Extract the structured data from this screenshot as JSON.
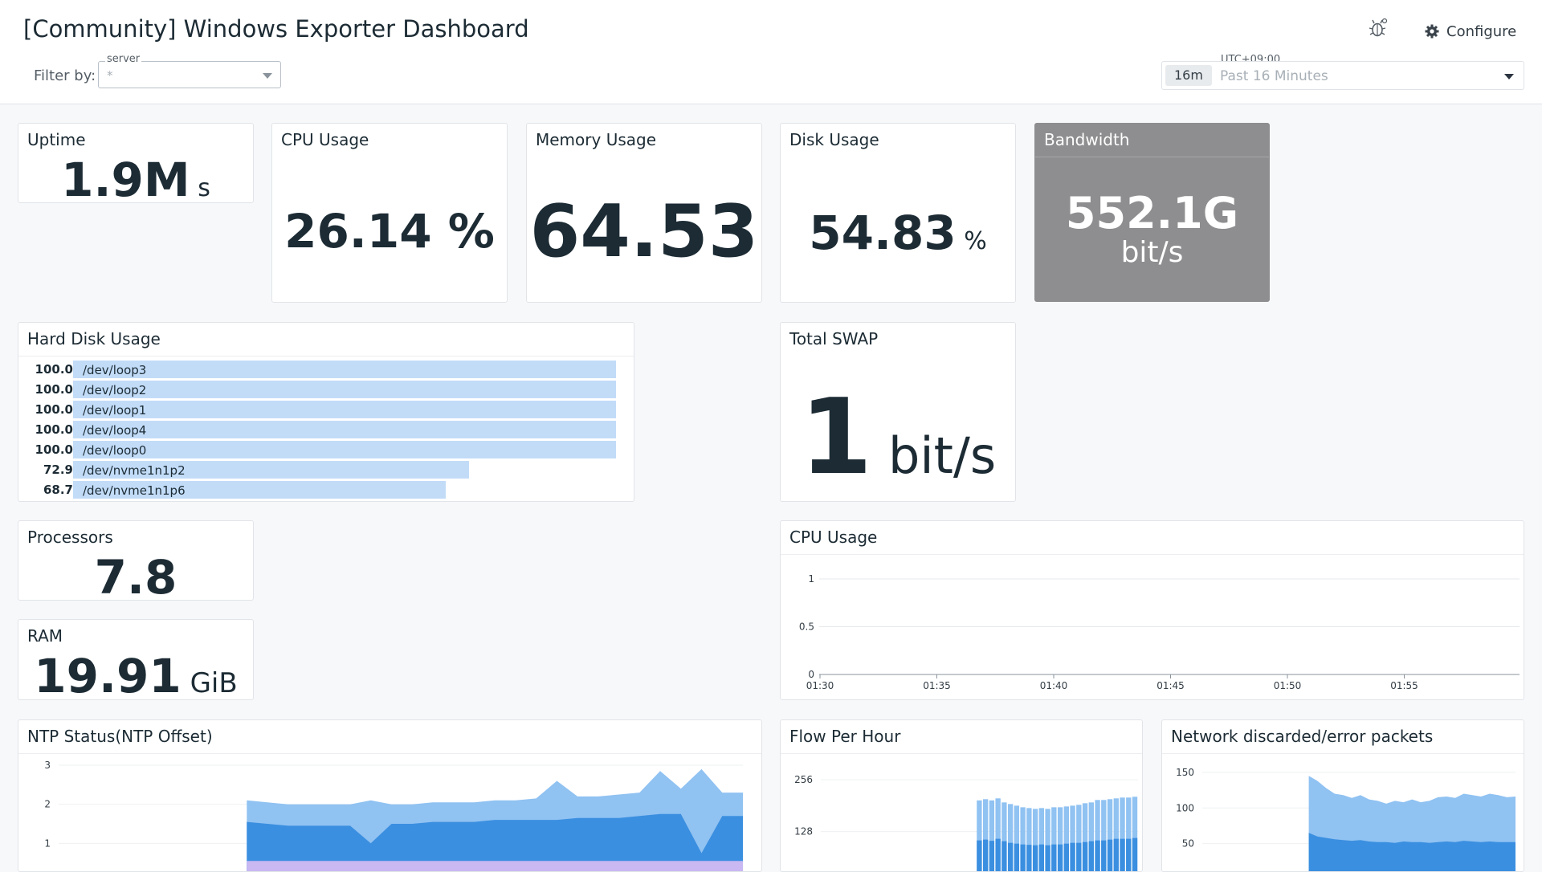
{
  "header": {
    "title": "[Community] Windows Exporter Dashboard",
    "filter_label": "Filter by:",
    "filter": {
      "legend": "server",
      "value": "*"
    },
    "configure_label": "Configure",
    "timezone": "UTC+09:00",
    "time_chip": "16m",
    "time_range": "Past 16 Minutes"
  },
  "widgets": {
    "uptime": {
      "title": "Uptime",
      "value": "1.9M",
      "unit": "s"
    },
    "cpu_usage": {
      "title": "CPU Usage",
      "value": "26.14",
      "unit": "%"
    },
    "memory_usage": {
      "title": "Memory Usage",
      "value": "64.53"
    },
    "disk_usage": {
      "title": "Disk Usage",
      "value": "54.83",
      "unit": "%"
    },
    "bandwidth": {
      "title": "Bandwidth",
      "value": "552.1G",
      "unit": "bit/s"
    },
    "hard_disk": {
      "title": "Hard Disk Usage",
      "rows": [
        {
          "value": "100.0",
          "name": "/dev/loop3",
          "pct": 100.0
        },
        {
          "value": "100.0",
          "name": "/dev/loop2",
          "pct": 100.0
        },
        {
          "value": "100.0",
          "name": "/dev/loop1",
          "pct": 100.0
        },
        {
          "value": "100.0",
          "name": "/dev/loop4",
          "pct": 100.0
        },
        {
          "value": "100.0",
          "name": "/dev/loop0",
          "pct": 100.0
        },
        {
          "value": "72.9",
          "name": "/dev/nvme1n1p2",
          "pct": 72.9
        },
        {
          "value": "68.7",
          "name": "/dev/nvme1n1p6",
          "pct": 68.7
        }
      ]
    },
    "total_swap": {
      "title": "Total SWAP",
      "value": "1",
      "unit": "bit/s"
    },
    "processors": {
      "title": "Processors",
      "value": "7.8"
    },
    "ram": {
      "title": "RAM",
      "value": "19.91",
      "unit": "GiB"
    },
    "cpu_chart": {
      "title": "CPU Usage",
      "y_ticks": [
        "1",
        "0.5",
        "0"
      ],
      "x_ticks": [
        "01:30",
        "01:35",
        "01:40",
        "01:45",
        "01:50",
        "01:55"
      ]
    },
    "ntp": {
      "title": "NTP Status(NTP Offset)",
      "y_ticks": [
        "3",
        "2",
        "1"
      ]
    },
    "flow": {
      "title": "Flow Per Hour",
      "y_ticks": [
        "256",
        "128"
      ]
    },
    "network": {
      "title": "Network discarded/error packets",
      "y_ticks": [
        "150",
        "100",
        "50"
      ]
    }
  },
  "colors": {
    "series_light": "#90c2f2",
    "series_dark": "#3b8fe0",
    "series_purple": "#c9b8f2",
    "disk_bar": "#c2dcf8",
    "bandwidth_bg": "#8e8e90"
  },
  "chart_data": [
    {
      "type": "line",
      "title": "CPU Usage",
      "x": [
        "01:30",
        "01:35",
        "01:40",
        "01:45",
        "01:50",
        "01:55"
      ],
      "ylim": [
        0,
        1
      ],
      "y_ticks": [
        0,
        0.5,
        1
      ],
      "series": [],
      "grid": true
    },
    {
      "type": "area",
      "title": "NTP Status(NTP Offset)",
      "y_ticks": [
        1,
        2,
        3
      ],
      "ylim": [
        0,
        3
      ],
      "series": [
        {
          "values": [
            2.1,
            2.05,
            2.0,
            2.0,
            2.0,
            2.0,
            2.1,
            2.0,
            2.0,
            2.05,
            2.05,
            2.05,
            2.1,
            2.1,
            2.15,
            2.6,
            2.2,
            2.2,
            2.25,
            2.3,
            2.85,
            2.4,
            2.9,
            2.3,
            2.3
          ]
        },
        {
          "values": [
            1.55,
            1.5,
            1.45,
            1.45,
            1.45,
            1.45,
            1.0,
            1.5,
            1.5,
            1.55,
            1.55,
            1.55,
            1.6,
            1.6,
            1.6,
            1.6,
            1.65,
            1.65,
            1.65,
            1.7,
            1.75,
            1.75,
            0.75,
            1.7,
            1.7
          ]
        },
        {
          "values": [
            0.55,
            0.55,
            0.55,
            0.55,
            0.55,
            0.55,
            0.55,
            0.55,
            0.55,
            0.55,
            0.55,
            0.55,
            0.55,
            0.55,
            0.55,
            0.55,
            0.55,
            0.55,
            0.55,
            0.55,
            0.55,
            0.55,
            0.55,
            0.55,
            0.55
          ]
        }
      ]
    },
    {
      "type": "bar",
      "title": "Flow Per Hour",
      "y_ticks": [
        128,
        256
      ],
      "ylim": [
        0,
        256
      ],
      "series": [
        {
          "values": [
            0,
            0,
            0,
            0,
            0,
            0,
            0,
            0,
            0,
            0,
            0,
            0,
            0,
            0,
            0,
            0,
            0,
            0,
            0,
            0,
            0,
            0,
            0,
            0,
            0,
            205,
            208,
            205,
            210,
            200,
            196,
            192,
            188,
            186,
            184,
            186,
            184,
            188,
            188,
            190,
            192,
            194,
            198,
            200,
            206,
            206,
            208,
            210,
            212,
            212,
            214
          ]
        },
        {
          "values": [
            2,
            2,
            2,
            2,
            2,
            2,
            2,
            2,
            2,
            2,
            2,
            2,
            2,
            2,
            2,
            2,
            2,
            2,
            2,
            2,
            2,
            2,
            2,
            2,
            2,
            106,
            108,
            105,
            110,
            104,
            100,
            98,
            96,
            95,
            94,
            96,
            94,
            96,
            96,
            98,
            100,
            100,
            102,
            104,
            106,
            106,
            108,
            110,
            110,
            110,
            112
          ]
        }
      ]
    },
    {
      "type": "area",
      "title": "Network discarded/error packets",
      "y_ticks": [
        50,
        100,
        150
      ],
      "ylim": [
        0,
        160
      ],
      "series": [
        {
          "values": [
            145,
            138,
            128,
            120,
            118,
            114,
            118,
            112,
            110,
            106,
            110,
            108,
            112,
            108,
            110,
            115,
            116,
            114,
            120,
            118,
            116,
            120,
            118,
            115,
            116
          ]
        },
        {
          "values": [
            65,
            60,
            58,
            56,
            55,
            54,
            55,
            53,
            52,
            52,
            51,
            53,
            52,
            52,
            51,
            52,
            53,
            52,
            54,
            53,
            52,
            53,
            52,
            52,
            52
          ]
        }
      ]
    }
  ]
}
